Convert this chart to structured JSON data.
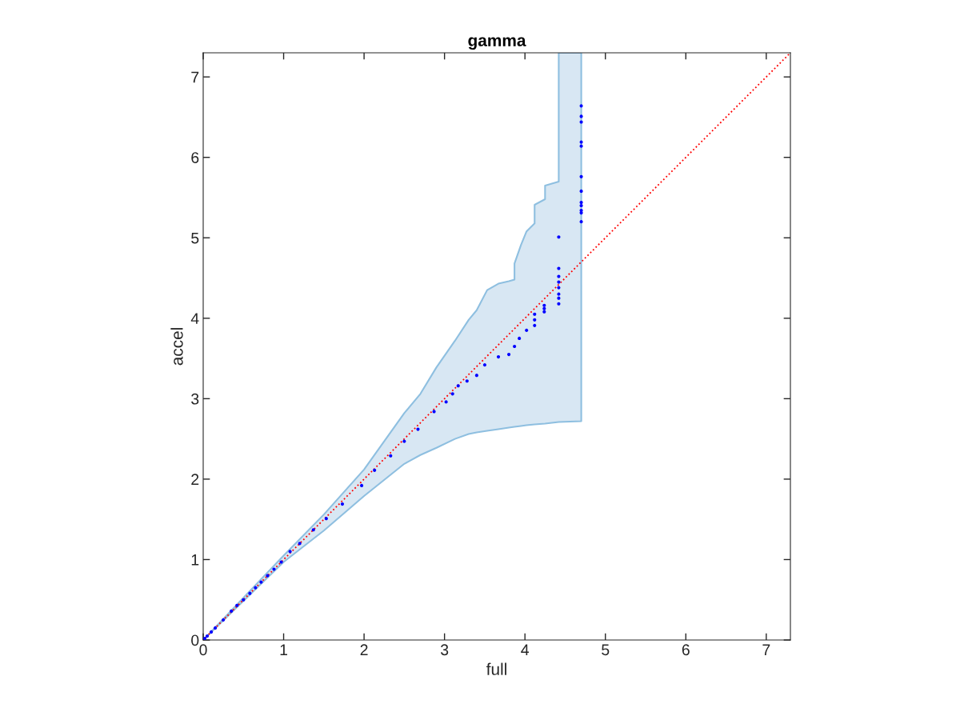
{
  "chart_data": {
    "type": "scatter",
    "title": "gamma",
    "xlabel": "full",
    "ylabel": "accel",
    "xlim": [
      0,
      7.3
    ],
    "ylim": [
      0,
      7.3
    ],
    "xticks": [
      0,
      1,
      2,
      3,
      4,
      5,
      6,
      7
    ],
    "yticks": [
      0,
      1,
      2,
      3,
      4,
      5,
      6,
      7
    ],
    "grid": false,
    "legend": false,
    "series": [
      {
        "type": "line",
        "color": "#ff0000",
        "line_style": "dotted",
        "marker": "none",
        "x": [
          0,
          1,
          1.5,
          2,
          2.5,
          2.7,
          2.9,
          3.13,
          3.3,
          3.4,
          3.53,
          3.67,
          3.8,
          3.87,
          3.87,
          3.95,
          4.02,
          4.12,
          4.12,
          4.25,
          4.25,
          4.42,
          4.42,
          4.7,
          7.3
        ],
        "values": [
          0,
          1,
          1.5,
          2,
          2.5,
          2.7,
          2.9,
          3.13,
          3.3,
          3.4,
          3.53,
          3.67,
          3.8,
          3.87,
          3.87,
          3.95,
          4.02,
          4.12,
          4.12,
          4.25,
          4.25,
          4.42,
          4.42,
          4.7,
          7.3
        ],
        "lower": [
          0,
          0.97,
          1.36,
          1.79,
          2.19,
          2.3,
          2.39,
          2.5,
          2.56,
          2.58,
          2.6,
          2.62,
          2.64,
          2.65,
          2.65,
          2.66,
          2.67,
          2.68,
          2.68,
          2.69,
          2.69,
          2.71,
          2.71,
          2.72,
          null
        ],
        "upper": [
          0,
          1.05,
          1.56,
          2.12,
          2.82,
          3.06,
          3.39,
          3.72,
          3.98,
          4.1,
          4.35,
          4.43,
          4.46,
          4.48,
          4.68,
          4.91,
          5.08,
          5.18,
          5.41,
          5.48,
          5.65,
          5.7,
          7.3,
          7.3,
          null
        ]
      },
      {
        "color": "#0000ff",
        "marker": "circle",
        "x": [
          0.02,
          0.05,
          0.1,
          0.15,
          0.25,
          0.35,
          0.42,
          0.5,
          0.58,
          0.65,
          0.72,
          0.8,
          0.88,
          0.97,
          1.08,
          1.2,
          1.37,
          1.53,
          1.73,
          1.97,
          2.13,
          2.33,
          2.5,
          2.67,
          2.87,
          3.02,
          3.1,
          3.17,
          3.28,
          3.4,
          3.5,
          3.67,
          3.8,
          3.87,
          3.93,
          4.02,
          4.12,
          4.12,
          4.12,
          4.24,
          4.24,
          4.24,
          4.42,
          4.42,
          4.42,
          4.42,
          4.42,
          4.42,
          4.42,
          4.42,
          4.7,
          4.7,
          4.7,
          4.7,
          4.7,
          4.7,
          4.7,
          4.7,
          4.7,
          4.7,
          4.7,
          4.7
        ],
        "values": [
          0.02,
          0.05,
          0.1,
          0.15,
          0.25,
          0.36,
          0.43,
          0.5,
          0.58,
          0.65,
          0.72,
          0.8,
          0.88,
          0.97,
          1.1,
          1.2,
          1.37,
          1.51,
          1.69,
          1.92,
          2.11,
          2.29,
          2.47,
          2.62,
          2.84,
          2.96,
          3.06,
          3.16,
          3.22,
          3.29,
          3.42,
          3.52,
          3.55,
          3.65,
          3.75,
          3.85,
          3.91,
          3.98,
          4.05,
          4.08,
          4.12,
          4.16,
          4.18,
          4.25,
          4.3,
          4.38,
          4.45,
          4.52,
          4.62,
          5.01,
          5.2,
          5.31,
          5.34,
          5.4,
          5.44,
          5.58,
          5.76,
          6.14,
          6.19,
          6.44,
          6.51,
          6.64
        ]
      }
    ]
  }
}
